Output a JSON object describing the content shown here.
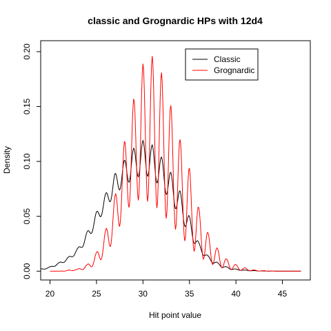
{
  "chart_data": {
    "type": "line",
    "title": "classic and Grognardic HPs with 12d4",
    "xlabel": "Hit point value",
    "ylabel": "Density",
    "xlim": [
      19,
      48
    ],
    "ylim": [
      -0.008,
      0.21
    ],
    "x_ticks": [
      20,
      25,
      30,
      35,
      40,
      45
    ],
    "x_tick_labels": [
      "20",
      "25",
      "30",
      "35",
      "40",
      "45"
    ],
    "y_ticks": [
      0.0,
      0.05,
      0.1,
      0.15,
      0.2
    ],
    "y_tick_labels": [
      "0.00",
      "0.05",
      "0.10",
      "0.15",
      "0.20"
    ],
    "legend_position": "top-right",
    "series": [
      {
        "name": "Classic",
        "color": "#000000",
        "x": [
          19.0,
          20.0,
          21.0,
          22.0,
          23.0,
          24.0,
          25.0,
          26.0,
          27.0,
          28.0,
          29.0,
          30.0,
          31.0,
          32.0,
          33.0,
          34.0,
          35.0,
          36.0,
          37.0,
          38.0,
          39.0,
          40.0,
          41.0,
          42.0,
          43.0,
          44.0,
          45.0,
          46.0,
          47.0
        ],
        "peaks": [
          0.002,
          0.004,
          0.008,
          0.013,
          0.021,
          0.036,
          0.054,
          0.071,
          0.089,
          0.101,
          0.112,
          0.119,
          0.115,
          0.104,
          0.09,
          0.073,
          0.05,
          0.026,
          0.014,
          0.008,
          0.004,
          0.002,
          0.001,
          0.0005,
          0.0002,
          0.0001,
          0.0,
          0.0,
          0.0
        ],
        "troughs": [
          0.001,
          0.003,
          0.006,
          0.01,
          0.017,
          0.027,
          0.043,
          0.057,
          0.07,
          0.078,
          0.084,
          0.088,
          0.085,
          0.076,
          0.064,
          0.05,
          0.032,
          0.019,
          0.01,
          0.005,
          0.002,
          0.001,
          0.0005,
          0.0002,
          0.0001,
          0.0,
          0.0,
          0.0,
          0.0
        ]
      },
      {
        "name": "Grognardic",
        "color": "#ff0000",
        "x": [
          20.0,
          21.0,
          22.0,
          23.0,
          24.0,
          25.0,
          26.0,
          27.0,
          28.0,
          29.0,
          30.0,
          31.0,
          32.0,
          33.0,
          34.0,
          35.0,
          36.0,
          37.0,
          38.0,
          39.0,
          40.0,
          41.0,
          42.0,
          43.0,
          44.0,
          45.0,
          46.0,
          47.0
        ],
        "peaks": [
          0.0,
          0.0,
          0.001,
          0.002,
          0.006,
          0.017,
          0.038,
          0.069,
          0.118,
          0.157,
          0.189,
          0.196,
          0.181,
          0.151,
          0.12,
          0.094,
          0.058,
          0.035,
          0.021,
          0.011,
          0.006,
          0.003,
          0.001,
          0.0005,
          0.0002,
          0.0,
          0.0,
          0.0
        ],
        "troughs": [
          0.0,
          0.0,
          0.0,
          0.001,
          0.002,
          0.006,
          0.015,
          0.03,
          0.052,
          0.064,
          0.065,
          0.062,
          0.053,
          0.043,
          0.033,
          0.022,
          0.014,
          0.008,
          0.004,
          0.002,
          0.001,
          0.0005,
          0.0002,
          0.0,
          0.0,
          0.0,
          0.0,
          0.0
        ]
      }
    ]
  }
}
